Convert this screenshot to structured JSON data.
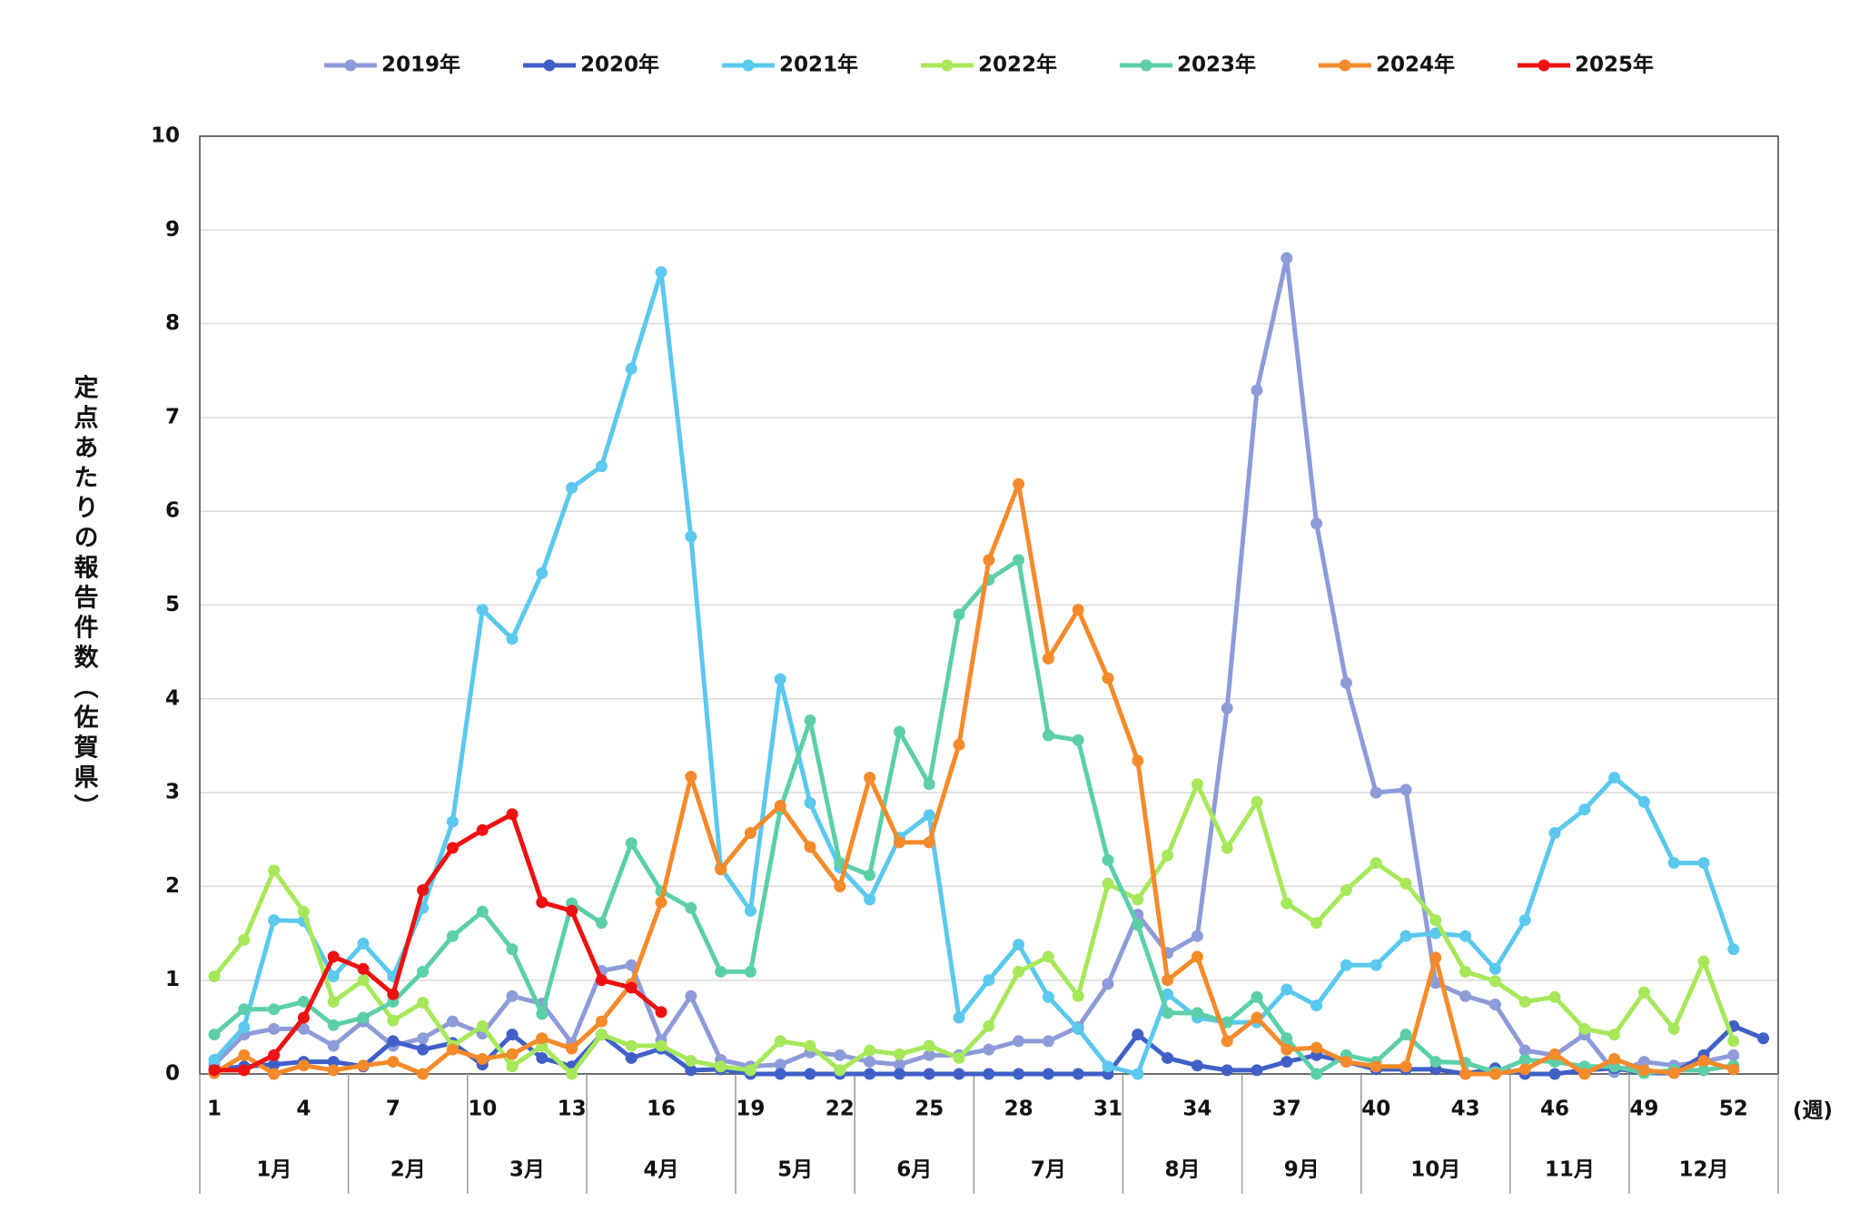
{
  "chart_data": {
    "type": "line",
    "y_label": "定点あたりの報告件数（佐賀県）",
    "x_label": "(週)",
    "categories": [
      1,
      null,
      null,
      4,
      null,
      null,
      7,
      null,
      null,
      10,
      null,
      null,
      13,
      null,
      null,
      16,
      null,
      null,
      19,
      null,
      null,
      22,
      null,
      null,
      25,
      null,
      null,
      28,
      null,
      null,
      31,
      null,
      null,
      34,
      null,
      null,
      37,
      null,
      null,
      40,
      null,
      null,
      43,
      null,
      null,
      46,
      null,
      null,
      49,
      null,
      null,
      52,
      null
    ],
    "months": [
      {
        "label": "1月",
        "weeks": 5
      },
      {
        "label": "2月",
        "weeks": 4
      },
      {
        "label": "3月",
        "weeks": 4
      },
      {
        "label": "4月",
        "weeks": 5
      },
      {
        "label": "5月",
        "weeks": 4
      },
      {
        "label": "6月",
        "weeks": 4
      },
      {
        "label": "7月",
        "weeks": 5
      },
      {
        "label": "8月",
        "weeks": 4
      },
      {
        "label": "9月",
        "weeks": 4
      },
      {
        "label": "10月",
        "weeks": 5
      },
      {
        "label": "11月",
        "weeks": 4
      },
      {
        "label": "12月",
        "weeks": 5
      }
    ],
    "ylim": [
      0,
      10
    ],
    "yticks": [
      0,
      1,
      2,
      3,
      4,
      5,
      6,
      7,
      8,
      9,
      10
    ],
    "grid": true,
    "legend": "top",
    "series": [
      {
        "name": "2019年",
        "color": "#8e9bd9",
        "values": [
          0.1,
          0.42,
          0.48,
          0.48,
          0.3,
          0.56,
          0.3,
          0.38,
          0.56,
          0.43,
          0.83,
          0.75,
          0.33,
          1.1,
          1.16,
          0.36,
          0.83,
          0.15,
          0.08,
          0.1,
          0.23,
          0.2,
          0.13,
          0.1,
          0.2,
          0.2,
          0.26,
          0.35,
          0.35,
          0.5,
          0.96,
          1.7,
          1.29,
          1.47,
          3.9,
          7.29,
          8.7,
          5.87,
          4.17,
          3.0,
          3.03,
          0.97,
          0.83,
          0.74,
          0.25,
          0.2,
          0.42,
          0.02,
          0.13,
          0.09,
          0.13,
          0.2,
          null
        ]
      },
      {
        "name": "2020年",
        "color": "#4060c8",
        "values": [
          0.05,
          0.08,
          0.1,
          0.13,
          0.13,
          0.08,
          0.35,
          0.26,
          0.33,
          0.1,
          0.42,
          0.17,
          0.08,
          0.42,
          0.17,
          0.27,
          0.04,
          0.05,
          0,
          0,
          0,
          0,
          0,
          0,
          0,
          0,
          0,
          0,
          0,
          0,
          0,
          0.42,
          0.17,
          0.09,
          0.04,
          0.04,
          0.13,
          0.2,
          0.13,
          0.05,
          0.05,
          0.05,
          0,
          0.06,
          0,
          0,
          0.04,
          0.06,
          0.01,
          0.01,
          0.2,
          0.51,
          0.38
        ]
      },
      {
        "name": "2021年",
        "color": "#5bc8ee",
        "values": [
          0.15,
          0.5,
          1.64,
          1.63,
          1.04,
          1.39,
          1.04,
          1.77,
          2.69,
          4.95,
          4.64,
          5.34,
          6.25,
          6.48,
          7.52,
          8.55,
          5.73,
          2.2,
          1.74,
          4.21,
          2.89,
          2.2,
          1.86,
          2.52,
          2.76,
          0.6,
          1.0,
          1.38,
          0.82,
          0.48,
          0.08,
          0,
          0.85,
          0.6,
          0.55,
          0.55,
          0.9,
          0.73,
          1.16,
          1.16,
          1.47,
          1.5,
          1.47,
          1.12,
          1.64,
          2.57,
          2.82,
          3.16,
          2.9,
          2.25,
          2.25,
          1.33,
          null
        ]
      },
      {
        "name": "2022年",
        "color": "#a6e85a",
        "values": [
          1.04,
          1.43,
          2.17,
          1.73,
          0.77,
          1.0,
          0.57,
          0.76,
          0.3,
          0.51,
          0.08,
          0.3,
          0,
          0.42,
          0.3,
          0.3,
          0.14,
          0.08,
          0.04,
          0.35,
          0.3,
          0.04,
          0.25,
          0.21,
          0.3,
          0.17,
          0.51,
          1.09,
          1.25,
          0.83,
          2.03,
          1.86,
          2.33,
          3.09,
          2.41,
          2.9,
          1.82,
          1.61,
          1.96,
          2.25,
          2.03,
          1.64,
          1.09,
          0.99,
          0.77,
          0.82,
          0.48,
          0.42,
          0.87,
          0.48,
          1.2,
          0.35,
          null
        ]
      },
      {
        "name": "2023年",
        "color": "#5ccfa8",
        "values": [
          0.42,
          0.69,
          0.69,
          0.77,
          0.52,
          0.6,
          0.77,
          1.09,
          1.47,
          1.73,
          1.33,
          0.64,
          1.82,
          1.61,
          2.46,
          1.95,
          1.77,
          1.09,
          1.09,
          2.82,
          3.77,
          2.25,
          2.12,
          3.65,
          3.09,
          4.9,
          5.27,
          5.48,
          3.61,
          3.56,
          2.28,
          1.59,
          0.65,
          0.65,
          0.55,
          0.82,
          0.38,
          0,
          0.2,
          0.13,
          0.42,
          0.13,
          0.12,
          0.02,
          0.15,
          0.13,
          0.08,
          0.08,
          0.01,
          0.04,
          0.04,
          0.09,
          null
        ]
      },
      {
        "name": "2024年",
        "color": "#f58a2a",
        "values": [
          0.01,
          0.2,
          0,
          0.09,
          0.04,
          0.09,
          0.13,
          0,
          0.26,
          0.16,
          0.21,
          0.38,
          0.27,
          0.56,
          0.96,
          1.83,
          3.17,
          2.18,
          2.57,
          2.86,
          2.42,
          2.0,
          3.16,
          2.47,
          2.47,
          3.51,
          5.48,
          6.29,
          4.43,
          4.95,
          4.22,
          3.34,
          1.0,
          1.25,
          0.35,
          0.6,
          0.26,
          0.28,
          0.13,
          0.08,
          0.08,
          1.24,
          0,
          0,
          0.05,
          0.21,
          0,
          0.16,
          0.04,
          0.01,
          0.14,
          0.05,
          null
        ]
      },
      {
        "name": "2025年",
        "color": "#ee1111",
        "values": [
          0.04,
          0.04,
          0.2,
          0.6,
          1.25,
          1.12,
          0.85,
          1.96,
          2.41,
          2.6,
          2.77,
          1.83,
          1.74,
          1.0,
          0.92,
          0.66,
          null,
          null,
          null,
          null,
          null,
          null,
          null,
          null,
          null,
          null,
          null,
          null,
          null,
          null,
          null,
          null,
          null,
          null,
          null,
          null,
          null,
          null,
          null,
          null,
          null,
          null,
          null,
          null,
          null,
          null,
          null,
          null,
          null,
          null,
          null,
          null,
          null
        ]
      }
    ]
  }
}
